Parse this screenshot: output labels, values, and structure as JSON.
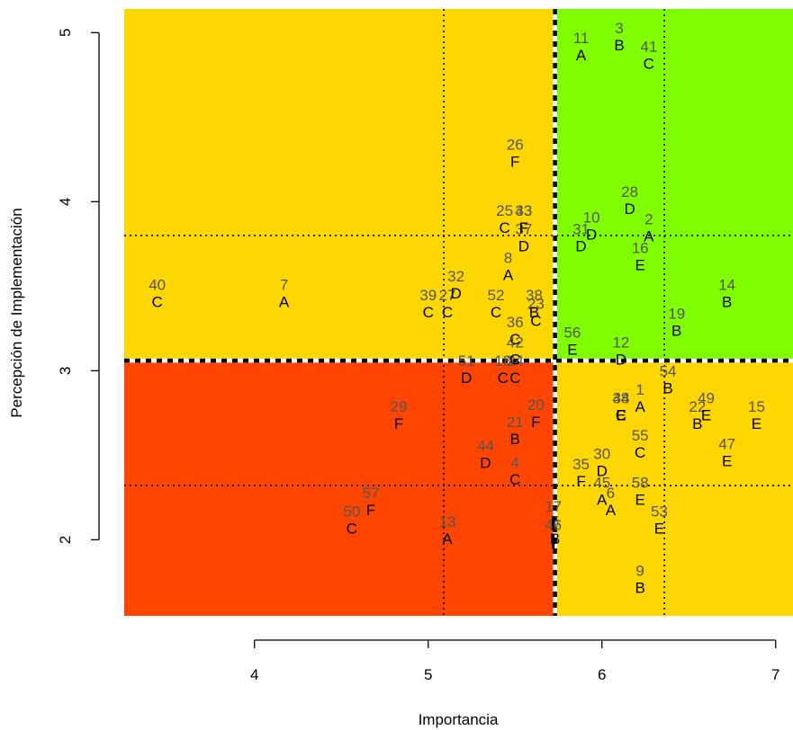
{
  "chart_data": {
    "type": "scatter",
    "xlabel": "Importancia",
    "ylabel": "Percepción de Implementación",
    "xlim": [
      3.25,
      7.1
    ],
    "ylim": [
      1.55,
      5.14
    ],
    "x_ticks": [
      4,
      5,
      6,
      7
    ],
    "y_ticks": [
      2,
      3,
      4,
      5
    ],
    "cutoff": {
      "x": 5.73,
      "y": 3.06
    },
    "reference_lines": {
      "x": [
        5.09,
        6.36
      ],
      "y": [
        2.32,
        3.8
      ]
    },
    "colors": {
      "keep_up": "#7fff00",
      "possible_overkill": "#ffd700",
      "low_priority": "#ffd700",
      "concentrate_here": "#ff4500"
    },
    "points": [
      {
        "id": "1",
        "group": "A",
        "x": 6.22,
        "y": 2.82
      },
      {
        "id": "2",
        "group": "A",
        "x": 6.27,
        "y": 3.83
      },
      {
        "id": "3",
        "group": "B",
        "x": 6.1,
        "y": 4.96
      },
      {
        "id": "4",
        "group": "C",
        "x": 5.5,
        "y": 2.39
      },
      {
        "id": "5",
        "group": "B",
        "x": 5.73,
        "y": 2.04
      },
      {
        "id": "6",
        "group": "A",
        "x": 6.05,
        "y": 2.21
      },
      {
        "id": "7",
        "group": "A",
        "x": 4.17,
        "y": 3.44
      },
      {
        "id": "8",
        "group": "A",
        "x": 5.46,
        "y": 3.6
      },
      {
        "id": "9",
        "group": "B",
        "x": 6.22,
        "y": 1.75
      },
      {
        "id": "10",
        "group": "D",
        "x": 5.94,
        "y": 3.84
      },
      {
        "id": "11",
        "group": "A",
        "x": 5.88,
        "y": 4.9
      },
      {
        "id": "12",
        "group": "D",
        "x": 6.11,
        "y": 3.1
      },
      {
        "id": "13",
        "group": "A",
        "x": 5.11,
        "y": 2.04
      },
      {
        "id": "14",
        "group": "B",
        "x": 6.72,
        "y": 3.44
      },
      {
        "id": "15",
        "group": "E",
        "x": 6.89,
        "y": 2.72
      },
      {
        "id": "16",
        "group": "E",
        "x": 6.22,
        "y": 3.66
      },
      {
        "id": "17",
        "group": "",
        "x": 5.72,
        "y": 2.13
      },
      {
        "id": "18",
        "group": "C",
        "x": 5.43,
        "y": 2.99
      },
      {
        "id": "19",
        "group": "B",
        "x": 6.43,
        "y": 3.27
      },
      {
        "id": "20",
        "group": "F",
        "x": 5.62,
        "y": 2.73
      },
      {
        "id": "21",
        "group": "B",
        "x": 5.5,
        "y": 2.63
      },
      {
        "id": "22",
        "group": "B",
        "x": 6.55,
        "y": 2.72
      },
      {
        "id": "23",
        "group": "C",
        "x": 5.62,
        "y": 3.33
      },
      {
        "id": "24",
        "group": "C",
        "x": 5.5,
        "y": 2.99
      },
      {
        "id": "25",
        "group": "C",
        "x": 5.44,
        "y": 3.88
      },
      {
        "id": "26",
        "group": "F",
        "x": 5.5,
        "y": 4.27
      },
      {
        "id": "27",
        "group": "C",
        "x": 5.11,
        "y": 3.38
      },
      {
        "id": "28",
        "group": "D",
        "x": 6.16,
        "y": 3.99
      },
      {
        "id": "29",
        "group": "F",
        "x": 4.83,
        "y": 2.72
      },
      {
        "id": "30",
        "group": "D",
        "x": 6.0,
        "y": 2.44
      },
      {
        "id": "31",
        "group": "D",
        "x": 5.88,
        "y": 3.77
      },
      {
        "id": "32",
        "group": "D",
        "x": 5.16,
        "y": 3.49
      },
      {
        "id": "33",
        "group": "F",
        "x": 5.55,
        "y": 3.88
      },
      {
        "id": "34",
        "group": "E",
        "x": 6.11,
        "y": 2.77
      },
      {
        "id": "35",
        "group": "F",
        "x": 5.88,
        "y": 2.38
      },
      {
        "id": "36",
        "group": "C",
        "x": 5.5,
        "y": 3.22
      },
      {
        "id": "37",
        "group": "D",
        "x": 5.55,
        "y": 3.77
      },
      {
        "id": "38",
        "group": "B",
        "x": 5.61,
        "y": 3.38
      },
      {
        "id": "39",
        "group": "C",
        "x": 5.0,
        "y": 3.38
      },
      {
        "id": "40",
        "group": "C",
        "x": 3.44,
        "y": 3.44
      },
      {
        "id": "41",
        "group": "C",
        "x": 6.27,
        "y": 4.85
      },
      {
        "id": "42",
        "group": "C",
        "x": 5.5,
        "y": 3.1
      },
      {
        "id": "43",
        "group": "F",
        "x": 5.55,
        "y": 3.88
      },
      {
        "id": "44",
        "group": "D",
        "x": 5.33,
        "y": 2.49
      },
      {
        "id": "45",
        "group": "A",
        "x": 6.0,
        "y": 2.27
      },
      {
        "id": "46",
        "group": "",
        "x": 5.72,
        "y": 2.02
      },
      {
        "id": "47",
        "group": "E",
        "x": 6.72,
        "y": 2.5
      },
      {
        "id": "48",
        "group": "C",
        "x": 6.11,
        "y": 2.77
      },
      {
        "id": "49",
        "group": "E",
        "x": 6.6,
        "y": 2.77
      },
      {
        "id": "50",
        "group": "C",
        "x": 4.56,
        "y": 2.1
      },
      {
        "id": "51",
        "group": "D",
        "x": 5.22,
        "y": 2.99
      },
      {
        "id": "52",
        "group": "C",
        "x": 5.39,
        "y": 3.38
      },
      {
        "id": "53",
        "group": "E",
        "x": 6.33,
        "y": 2.1
      },
      {
        "id": "54",
        "group": "B",
        "x": 6.38,
        "y": 2.93
      },
      {
        "id": "55",
        "group": "C",
        "x": 6.22,
        "y": 2.55
      },
      {
        "id": "56",
        "group": "E",
        "x": 5.83,
        "y": 3.16
      },
      {
        "id": "57",
        "group": "F",
        "x": 4.67,
        "y": 2.21
      },
      {
        "id": "58",
        "group": "E",
        "x": 6.22,
        "y": 2.27
      }
    ]
  }
}
